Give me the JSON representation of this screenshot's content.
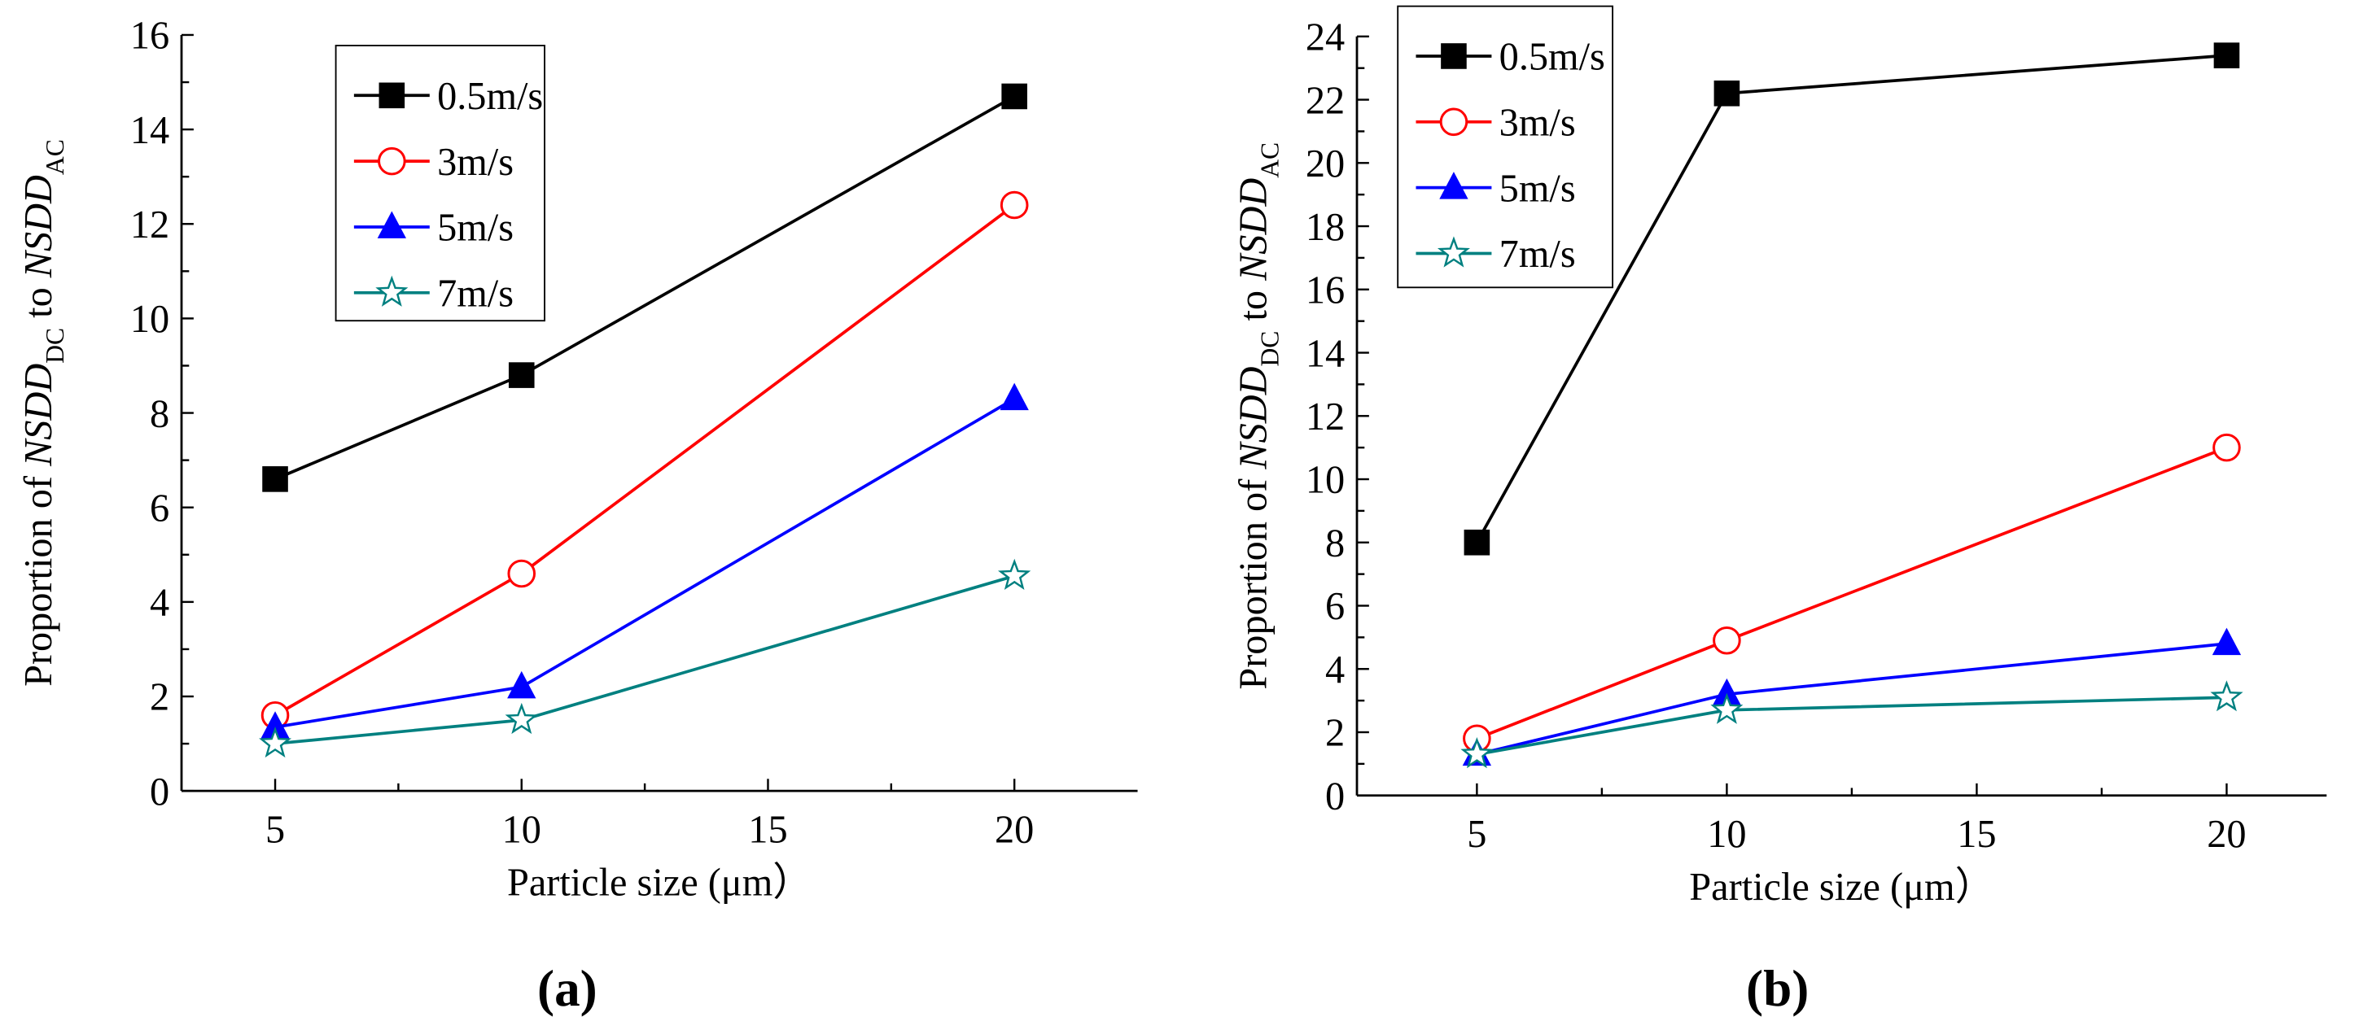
{
  "chart_data": [
    {
      "type": "line",
      "panel_label": "(a)",
      "xlabel": "Particle size (μm）",
      "ylabel": {
        "prefix": "Proportion of ",
        "var1": "NSDD",
        "sub1": "DC",
        "mid": " to ",
        "var2": "NSDD",
        "sub2": "AC"
      },
      "x": [
        5,
        10,
        20
      ],
      "xlim": [
        3.1,
        22.5
      ],
      "xticks": [
        5,
        10,
        15,
        20
      ],
      "ylim": [
        0,
        16
      ],
      "yticks": [
        0,
        2,
        4,
        6,
        8,
        10,
        12,
        14,
        16
      ],
      "legend_position": "top-left",
      "series": [
        {
          "name": "0.5m/s",
          "color": "#000000",
          "marker": "square",
          "values": [
            6.6,
            8.8,
            14.7
          ]
        },
        {
          "name": "3m/s",
          "color": "#ff0000",
          "marker": "circle-open",
          "values": [
            1.6,
            4.6,
            12.4
          ]
        },
        {
          "name": "5m/s",
          "color": "#0000ff",
          "marker": "triangle",
          "values": [
            1.35,
            2.2,
            8.3
          ]
        },
        {
          "name": "7m/s",
          "color": "#008080",
          "marker": "star-open",
          "values": [
            1.0,
            1.5,
            4.55
          ]
        }
      ]
    },
    {
      "type": "line",
      "panel_label": "(b)",
      "xlabel": "Particle size (μm）",
      "ylabel": {
        "prefix": "Proportion of ",
        "var1": "NSDD",
        "sub1": "DC",
        "mid": " to ",
        "var2": "NSDD",
        "sub2": "AC"
      },
      "x": [
        5,
        10,
        20
      ],
      "xlim": [
        2.6,
        22.0
      ],
      "xticks": [
        5,
        10,
        15,
        20
      ],
      "ylim": [
        0,
        24
      ],
      "yticks": [
        0,
        2,
        4,
        6,
        8,
        10,
        12,
        14,
        16,
        18,
        20,
        22,
        24
      ],
      "legend_position": "top-left",
      "series": [
        {
          "name": "0.5m/s",
          "color": "#000000",
          "marker": "square",
          "values": [
            8.0,
            22.2,
            23.4
          ]
        },
        {
          "name": "3m/s",
          "color": "#ff0000",
          "marker": "circle-open",
          "values": [
            1.8,
            4.9,
            11.0
          ]
        },
        {
          "name": "5m/s",
          "color": "#0000ff",
          "marker": "triangle",
          "values": [
            1.3,
            3.2,
            4.8
          ]
        },
        {
          "name": "7m/s",
          "color": "#008080",
          "marker": "star-open",
          "values": [
            1.3,
            2.7,
            3.1
          ]
        }
      ]
    }
  ]
}
